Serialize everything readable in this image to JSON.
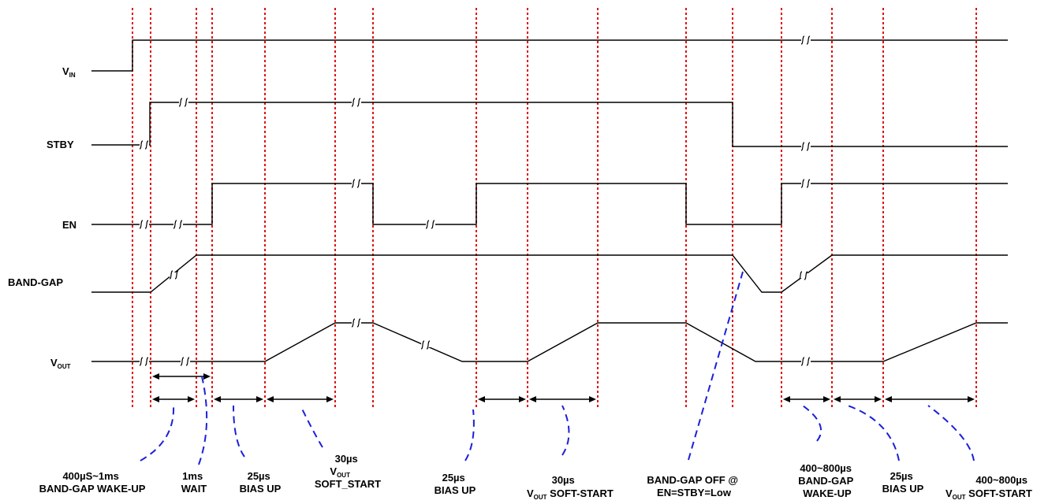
{
  "signals": [
    {
      "name": "V",
      "sub": "IN"
    },
    {
      "name": "STBY",
      "sub": ""
    },
    {
      "name": "EN",
      "sub": ""
    },
    {
      "name": "BAND-GAP",
      "sub": ""
    },
    {
      "name": "V",
      "sub": "OUT"
    }
  ],
  "annotations": [
    {
      "lines": [
        {
          "t": "400µS~1ms"
        },
        {
          "t": "BAND-GAP WAKE-UP"
        }
      ]
    },
    {
      "lines": [
        {
          "t": "1ms"
        },
        {
          "t": "WAIT"
        }
      ]
    },
    {
      "lines": [
        {
          "t": "25µs"
        },
        {
          "t": "BIAS UP"
        }
      ]
    },
    {
      "lines": [
        {
          "t": "30µs"
        },
        {
          "t": "V",
          "sub": "OUT"
        },
        {
          "t": "SOFT_START"
        }
      ]
    },
    {
      "lines": [
        {
          "t": "25µs"
        },
        {
          "t": "BIAS UP"
        }
      ]
    },
    {
      "lines": [
        {
          "t": "30µs"
        },
        {
          "t": "V",
          "sub": "OUT",
          "rest": " SOFT-START"
        }
      ]
    },
    {
      "lines": [
        {
          "t": "BAND-GAP OFF @"
        },
        {
          "t": "EN=STBY=Low"
        }
      ]
    },
    {
      "lines": [
        {
          "t": "400~800µs"
        },
        {
          "t": "BAND-GAP"
        },
        {
          "t": "WAKE-UP"
        }
      ]
    },
    {
      "lines": [
        {
          "t": "25µs"
        },
        {
          "t": "BIAS UP"
        }
      ]
    },
    {
      "lines": [
        {
          "t": "400~800µs"
        },
        {
          "t": "V",
          "sub": "OUT",
          "rest": " SOFT-START"
        }
      ]
    }
  ],
  "colors": {
    "markers": "#e01010",
    "leaders": "#1c20d8",
    "waveforms": "#000000"
  }
}
